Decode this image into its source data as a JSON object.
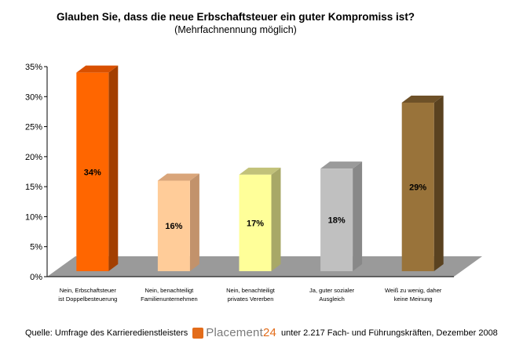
{
  "chart_data": {
    "type": "bar",
    "title": "Glauben Sie, dass die neue Erbschaftsteuer ein guter Kompromiss ist?",
    "subtitle": "(Mehrfachnennung möglich)",
    "ylim": [
      0,
      35
    ],
    "yticks": [
      "0%",
      "5%",
      "10%",
      "15%",
      "20%",
      "25%",
      "30%",
      "35%"
    ],
    "grid": false,
    "bars3d": true,
    "categories": [
      [
        "Nein, Erbschaftsteuer",
        "ist Doppelbesteuerung"
      ],
      [
        "Nein, benachteiligt",
        "Familienunternehmen"
      ],
      [
        "Nein, benachteiligt",
        "privates Vererben"
      ],
      [
        "Ja, guter sozialer",
        "Ausgleich"
      ],
      [
        "Weiß zu wenig, daher",
        "keine Meinung"
      ]
    ],
    "values": [
      34,
      16,
      17,
      18,
      29
    ],
    "data_labels": [
      "34%",
      "16%",
      "17%",
      "18%",
      "29%"
    ],
    "colors": [
      {
        "front": "#ff6600",
        "top": "#d95000",
        "side": "#a33f00"
      },
      {
        "front": "#ffcc99",
        "top": "#d9a57a",
        "side": "#c2926b"
      },
      {
        "front": "#ffff99",
        "top": "#c2c27a",
        "side": "#a8a867"
      },
      {
        "front": "#c0c0c0",
        "top": "#9a9a9a",
        "side": "#888888"
      },
      {
        "front": "#99733a",
        "top": "#6e5128",
        "side": "#5a4220"
      }
    ],
    "floor_color": "#9a9a9a"
  },
  "footer": {
    "source_prefix": "Quelle: Umfrage des Karrieredienstleisters",
    "logo_name": "Placement",
    "logo_number": "24",
    "source_suffix": "unter 2.217 Fach- und Führungskräften, Dezember 2008"
  }
}
